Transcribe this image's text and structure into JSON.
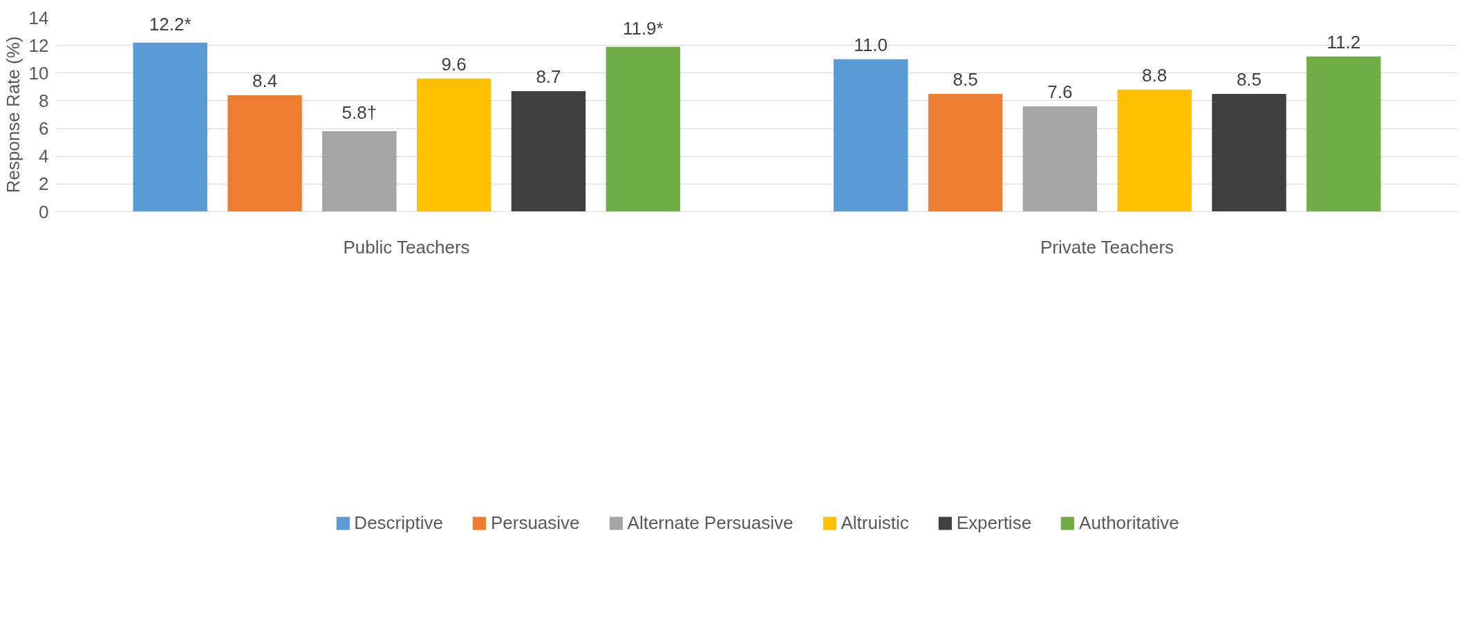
{
  "chart_data": {
    "type": "bar",
    "ylabel": "Response Rate (%)",
    "categories": [
      "Public Teachers",
      "Private Teachers"
    ],
    "series": [
      {
        "name": "Descriptive",
        "color": "#5b9bd5",
        "values": [
          12.2,
          11.0
        ],
        "value_labels": [
          "12.2*",
          "11.0"
        ]
      },
      {
        "name": "Persuasive",
        "color": "#ed7d31",
        "values": [
          8.4,
          8.5
        ],
        "value_labels": [
          "8.4",
          "8.5"
        ]
      },
      {
        "name": "Alternate Persuasive",
        "color": "#a5a5a5",
        "values": [
          5.8,
          7.6
        ],
        "value_labels": [
          "5.8†",
          "7.6"
        ]
      },
      {
        "name": "Altruistic",
        "color": "#ffc000",
        "values": [
          9.6,
          8.8
        ],
        "value_labels": [
          "9.6",
          "8.8"
        ]
      },
      {
        "name": "Expertise",
        "color": "#404040",
        "values": [
          8.7,
          8.5
        ],
        "value_labels": [
          "8.7",
          "8.5"
        ]
      },
      {
        "name": "Authoritative",
        "color": "#70ad47",
        "values": [
          11.9,
          11.2
        ],
        "value_labels": [
          "11.9*",
          "11.2"
        ]
      }
    ],
    "ylim": [
      0,
      14
    ],
    "yticks": [
      0,
      2,
      4,
      6,
      8,
      10,
      12,
      14
    ],
    "grid": "y",
    "legend": "bottom"
  }
}
